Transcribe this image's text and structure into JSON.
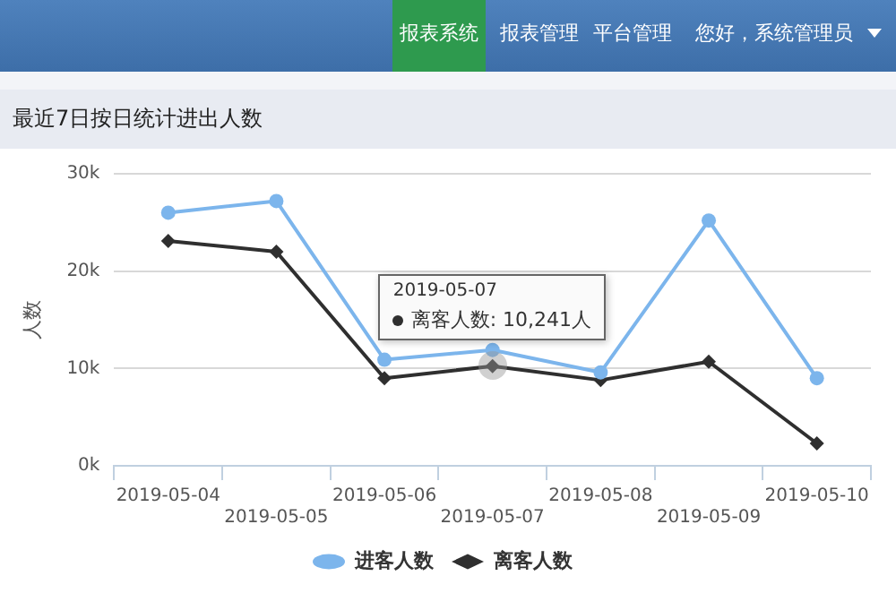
{
  "chart_data": {
    "type": "line",
    "title": "最近7日按日统计进出人数",
    "ylabel": "人数",
    "categories": [
      "2019-05-04",
      "2019-05-05",
      "2019-05-06",
      "2019-05-07",
      "2019-05-08",
      "2019-05-09",
      "2019-05-10"
    ],
    "series": [
      {
        "name": "进客人数",
        "color": "#7cb5ec",
        "marker": "circle",
        "values": [
          26.0,
          27.2,
          10.9,
          11.9,
          9.6,
          25.2,
          9.0
        ]
      },
      {
        "name": "离客人数",
        "color": "#2f2f2f",
        "marker": "diamond",
        "values": [
          23.1,
          22.0,
          9.0,
          10.241,
          8.8,
          10.7,
          2.3
        ]
      }
    ],
    "ylim": [
      0,
      30
    ],
    "yticks": [
      {
        "value": 0,
        "label": "0k"
      },
      {
        "value": 10,
        "label": "10k"
      },
      {
        "value": 20,
        "label": "20k"
      },
      {
        "value": 30,
        "label": "30k"
      }
    ],
    "grid": "y",
    "legend": "bottom",
    "line_style": "solid",
    "annotations": [
      "报表系统",
      "报表管理",
      "平台管理",
      "您好，系统管理员",
      "2019-05-07",
      {
        "text": "离客人数: 10,241人",
        "x": "2019-05-07",
        "y": 10.241
      }
    ]
  }
}
